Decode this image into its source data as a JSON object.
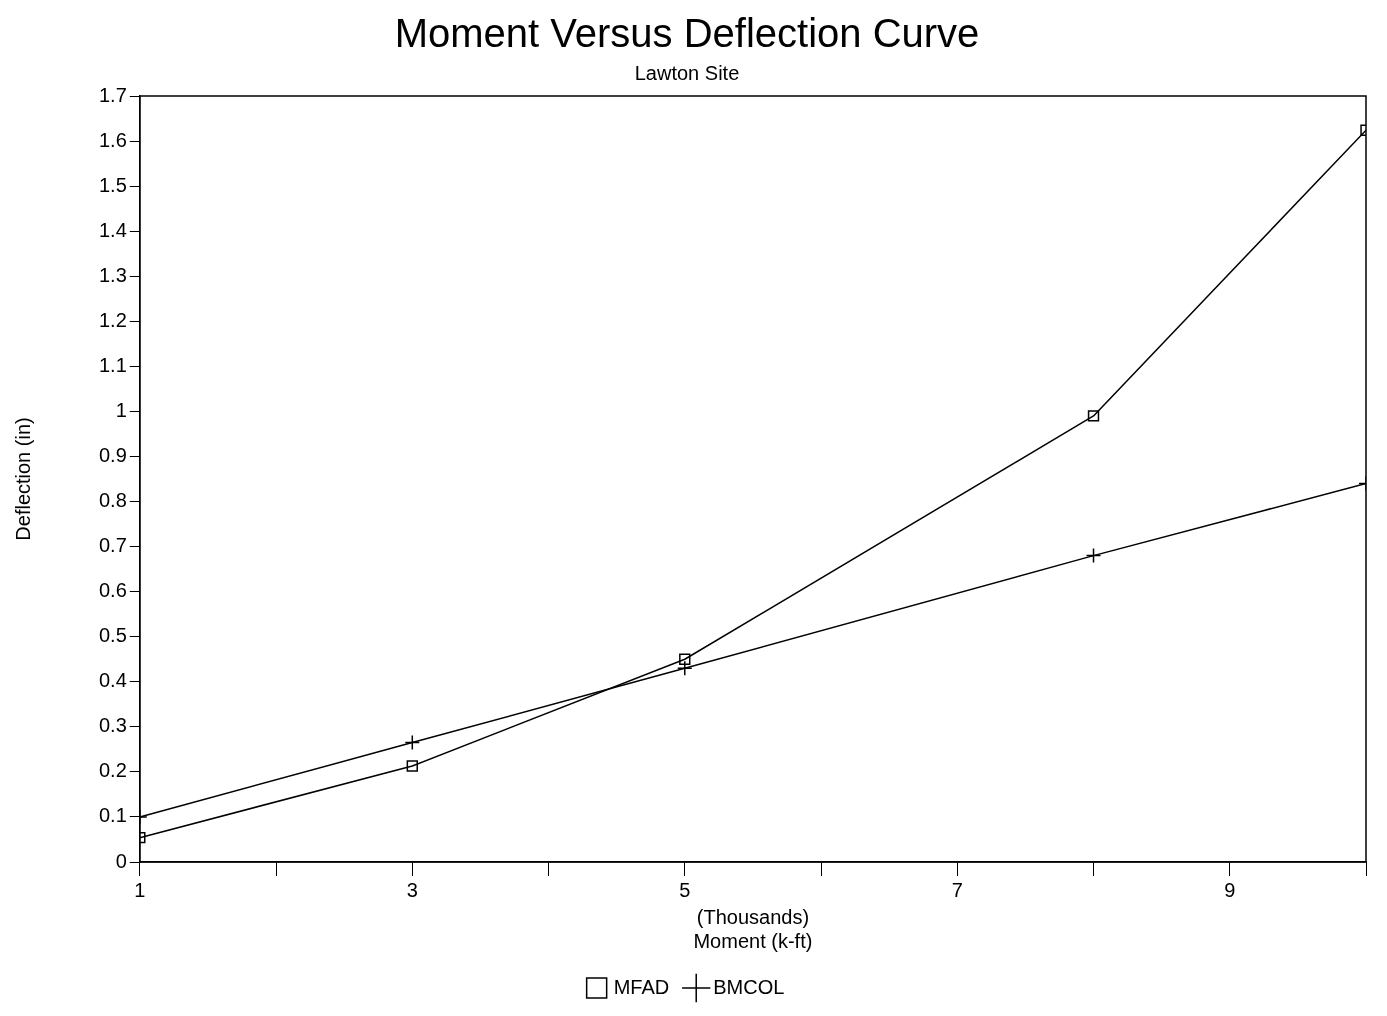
{
  "chart_data": {
    "type": "line",
    "title": "Moment Versus Deflection Curve",
    "subtitle": "Lawton Site",
    "xlabel": "(Thousands)\nMoment (k-ft)",
    "ylabel": "Deflection (in)",
    "x": [
      1,
      3,
      5,
      8,
      10
    ],
    "series": [
      {
        "name": "MFAD",
        "color": "#000000",
        "marker": "square",
        "values": [
          0.054,
          0.213,
          0.45,
          0.99,
          1.624
        ]
      },
      {
        "name": "BMCOL",
        "color": "#000000",
        "marker": "cross",
        "values": [
          0.1,
          0.265,
          0.43,
          0.68,
          0.84
        ]
      }
    ],
    "xlim": [
      1,
      10
    ],
    "xticks": [
      1,
      {
        "value": 2,
        "label": null
      },
      3,
      {
        "value": 4,
        "label": null
      },
      5,
      {
        "value": 6,
        "label": null
      },
      7,
      {
        "value": 8,
        "label": null
      },
      9,
      {
        "value": 10,
        "label": null
      }
    ],
    "ylim": [
      0,
      1.7
    ],
    "yticks": [
      0,
      0.1,
      0.2,
      0.3,
      0.4,
      0.5,
      0.6,
      0.7,
      0.8,
      0.9,
      1,
      1.1,
      1.2,
      1.3,
      1.4,
      1.5,
      1.6,
      1.7
    ],
    "grid": false,
    "legend": "bottom",
    "line_style": "solid"
  }
}
